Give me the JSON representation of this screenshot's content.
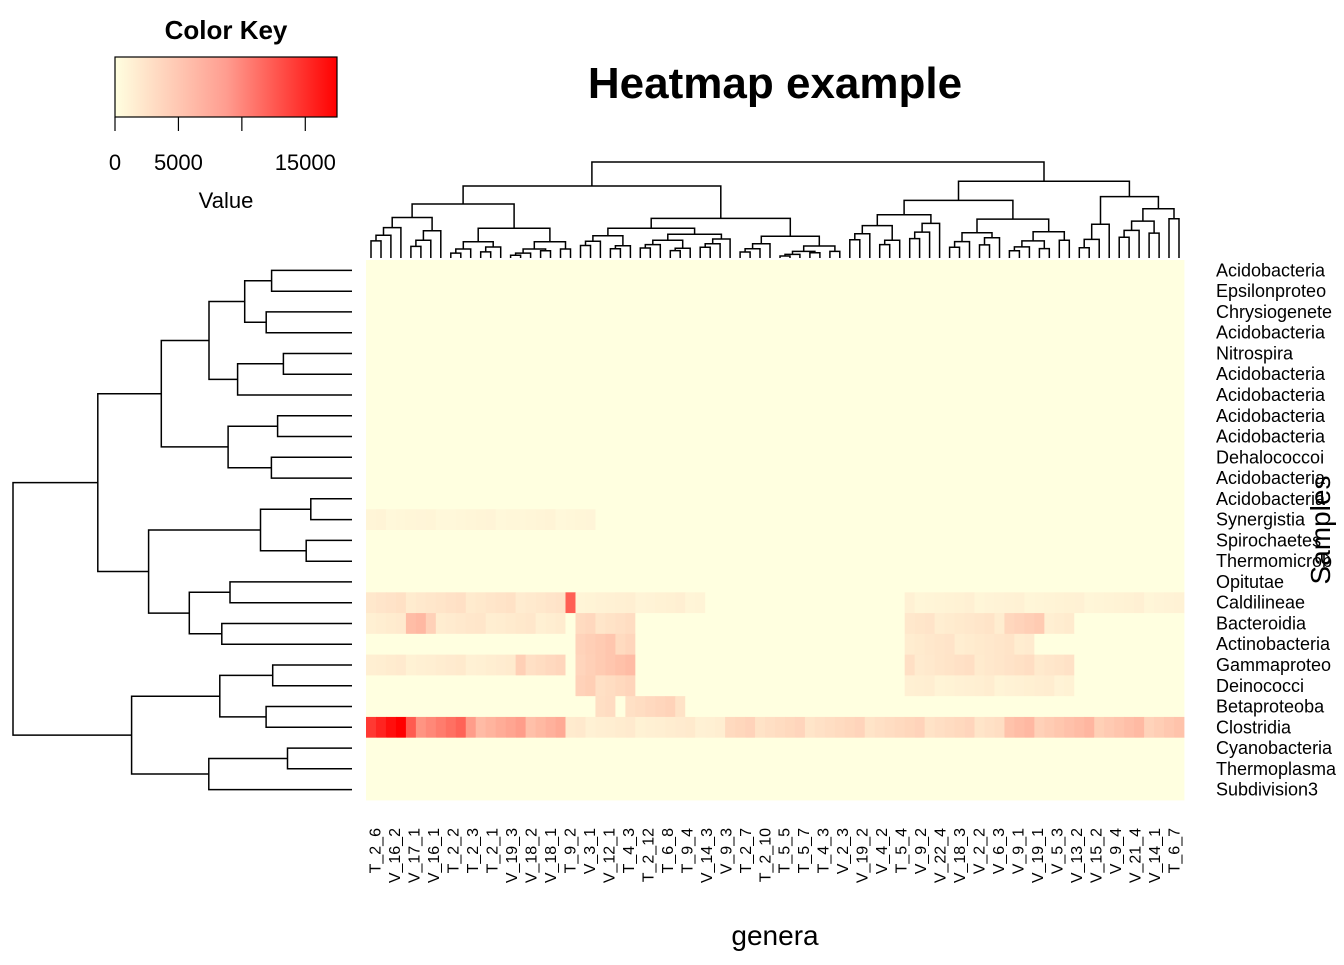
{
  "chart_data": {
    "type": "heatmap",
    "title": "Heatmap example",
    "xlabel": "genera",
    "ylabel": "Samples",
    "color_key": {
      "title": "Color Key",
      "xlabel": "Value",
      "ticks": [
        0,
        5000,
        15000
      ],
      "range": [
        0,
        17500
      ],
      "low_color": "#FFFFE0",
      "high_color": "#FF0000"
    },
    "rows": [
      "Acidobacteria",
      "Epsilonproteo",
      "Chrysiogenete",
      "Acidobacteria",
      "Nitrospira",
      "Acidobacteria",
      "Acidobacteria",
      "Acidobacteria",
      "Acidobacteria",
      "Dehalococcoi",
      "Acidobacteria",
      "Acidobacteria",
      "Synergistia",
      "Spirochaetes",
      "Thermomicrob",
      "Opitutae",
      "Caldilineae",
      "Bacteroidia",
      "Actinobacteria",
      "Gammaproteo",
      "Deinococci",
      "Betaproteoba",
      "Clostridia",
      "Cyanobacteria",
      "Thermoplasma",
      "Subdivision3"
    ],
    "column_labels": [
      "T_2_6",
      "V_16_2",
      "V_17_1",
      "V_16_1",
      "T_2_2",
      "T_2_3",
      "T_2_1",
      "V_19_3",
      "V_18_2",
      "V_18_1",
      "T_9_2",
      "V_3_1",
      "V_12_1",
      "T_4_3",
      "T_2_12",
      "T_6_8",
      "T_9_4",
      "V_14_3",
      "V_9_3",
      "T_2_7",
      "T_2_10",
      "T_5_5",
      "T_5_7",
      "T_4_3",
      "V_2_3",
      "V_19_2",
      "V_4_2",
      "T_5_4",
      "V_9_2",
      "V_22_4",
      "V_18_3",
      "V_2_2",
      "V_6_3",
      "V_9_1",
      "V_19_1",
      "V_5_3",
      "V_13_2",
      "V_15_2",
      "V_9_4",
      "V_21_4",
      "V_14_1",
      "T_6_7"
    ],
    "n_columns": 82,
    "highlights": [
      {
        "row": 12,
        "cols": [
          0,
          22
        ],
        "value": 600
      },
      {
        "row": 16,
        "cols": [
          0,
          19
        ],
        "value": 1700
      },
      {
        "row": 16,
        "cols": [
          20,
          20
        ],
        "value": 9000
      },
      {
        "row": 16,
        "cols": [
          21,
          33
        ],
        "value": 900
      },
      {
        "row": 16,
        "cols": [
          54,
          81
        ],
        "value": 800
      },
      {
        "row": 17,
        "cols": [
          0,
          19
        ],
        "value": 1400
      },
      {
        "row": 17,
        "cols": [
          4,
          6
        ],
        "value": 4000
      },
      {
        "row": 17,
        "cols": [
          21,
          26
        ],
        "value": 2200
      },
      {
        "row": 17,
        "cols": [
          54,
          70
        ],
        "value": 1500
      },
      {
        "row": 17,
        "cols": [
          64,
          67
        ],
        "value": 3000
      },
      {
        "row": 18,
        "cols": [
          21,
          26
        ],
        "value": 3200
      },
      {
        "row": 18,
        "cols": [
          54,
          66
        ],
        "value": 1500
      },
      {
        "row": 19,
        "cols": [
          0,
          19
        ],
        "value": 1200
      },
      {
        "row": 19,
        "cols": [
          15,
          19
        ],
        "value": 2600
      },
      {
        "row": 19,
        "cols": [
          21,
          26
        ],
        "value": 3800
      },
      {
        "row": 19,
        "cols": [
          54,
          70
        ],
        "value": 1800
      },
      {
        "row": 20,
        "cols": [
          21,
          26
        ],
        "value": 2800
      },
      {
        "row": 20,
        "cols": [
          54,
          70
        ],
        "value": 1000
      },
      {
        "row": 21,
        "cols": [
          23,
          24
        ],
        "value": 2000
      },
      {
        "row": 21,
        "cols": [
          26,
          31
        ],
        "value": 2500
      },
      {
        "row": 22,
        "cols": [
          0,
          3
        ],
        "value": 15500
      },
      {
        "row": 22,
        "cols": [
          4,
          10
        ],
        "value": 9000
      },
      {
        "row": 22,
        "cols": [
          11,
          19
        ],
        "value": 5500
      },
      {
        "row": 22,
        "cols": [
          20,
          35
        ],
        "value": 1200
      },
      {
        "row": 22,
        "cols": [
          36,
          81
        ],
        "value": 2400
      },
      {
        "row": 22,
        "cols": [
          64,
          81
        ],
        "value": 4000
      }
    ]
  }
}
